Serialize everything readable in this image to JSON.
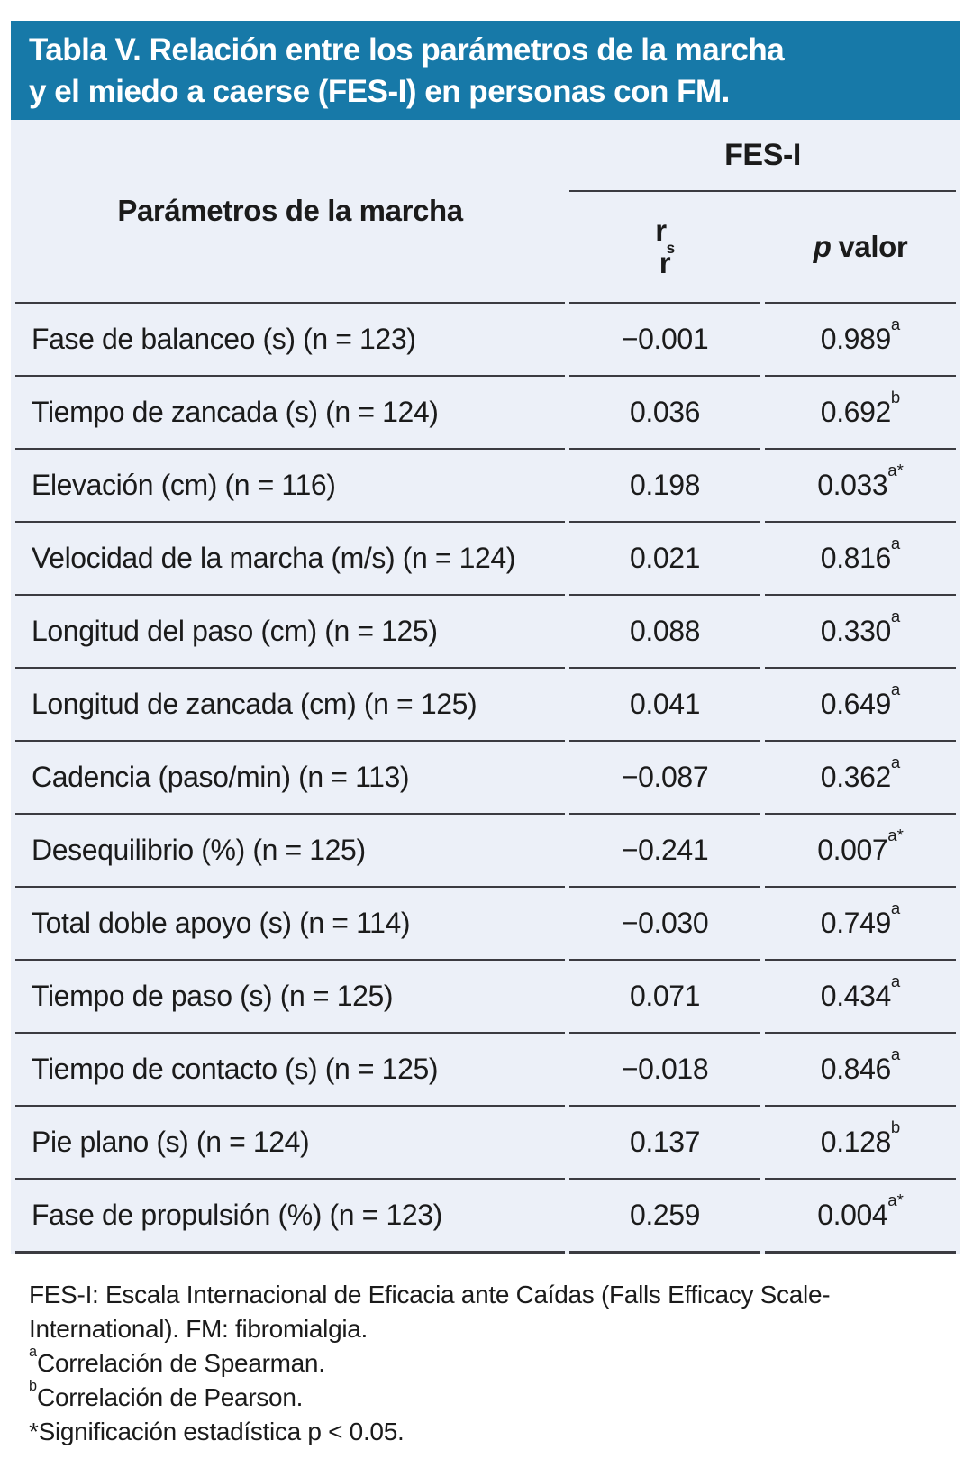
{
  "title": {
    "line1": "Tabla V. Relación entre los parámetros de la marcha",
    "line2": "y el miedo a caerse (FES-I) en personas con FM."
  },
  "table": {
    "param_column_header": "Parámetros de la marcha",
    "group_header": "FES-I",
    "stat_column": {
      "r_main": "r",
      "r_sub": "s",
      "r_line2": "r"
    },
    "p_column": {
      "p_italic": "p",
      "rest": "valor"
    },
    "rows": [
      {
        "label": "Fase de balanceo (s) (n = 123)",
        "r": "−0.001",
        "p": "0.989",
        "p_sup": "a"
      },
      {
        "label": "Tiempo de zancada (s) (n = 124)",
        "r": "0.036",
        "p": "0.692",
        "p_sup": "b"
      },
      {
        "label": "Elevación (cm) (n = 116)",
        "r": "0.198",
        "p": "0.033",
        "p_sup": "a*"
      },
      {
        "label": "Velocidad de la marcha (m/s) (n = 124)",
        "r": "0.021",
        "p": "0.816",
        "p_sup": "a"
      },
      {
        "label": "Longitud del paso (cm) (n = 125)",
        "r": "0.088",
        "p": "0.330",
        "p_sup": "a"
      },
      {
        "label": "Longitud de zancada (cm) (n = 125)",
        "r": "0.041",
        "p": "0.649",
        "p_sup": "a"
      },
      {
        "label": "Cadencia (paso/min) (n = 113)",
        "r": "−0.087",
        "p": "0.362",
        "p_sup": "a"
      },
      {
        "label": "Desequilibrio (%) (n = 125)",
        "r": "−0.241",
        "p": "0.007",
        "p_sup": "a*"
      },
      {
        "label": "Total doble apoyo (s) (n = 114)",
        "r": "−0.030",
        "p": "0.749",
        "p_sup": "a"
      },
      {
        "label": "Tiempo de paso (s) (n = 125)",
        "r": "0.071",
        "p": "0.434",
        "p_sup": "a"
      },
      {
        "label": "Tiempo de contacto (s) (n = 125)",
        "r": "−0.018",
        "p": "0.846",
        "p_sup": "a"
      },
      {
        "label": "Pie plano (s) (n = 124)",
        "r": "0.137",
        "p": "0.128",
        "p_sup": "b"
      },
      {
        "label": "Fase de propulsión (%) (n = 123)",
        "r": "0.259",
        "p": "0.004",
        "p_sup": "a*"
      }
    ]
  },
  "footnotes": [
    {
      "sup": "",
      "text": "FES-I: Escala Internacional de Eficacia ante Caídas (Falls Efficacy Scale-"
    },
    {
      "sup": "",
      "text": "International). FM: fibromialgia."
    },
    {
      "sup": "a",
      "text": "Correlación de Spearman."
    },
    {
      "sup": "b",
      "text": "Correlación de Pearson."
    },
    {
      "sup": "",
      "text": "*Significación estadística p < 0.05."
    }
  ],
  "colors": {
    "title_bar_bg": "#1779A8",
    "title_text": "#FFFFFF",
    "table_bg": "#ECF0F8",
    "border": "#3B3B41",
    "text": "#1B1B1B"
  }
}
